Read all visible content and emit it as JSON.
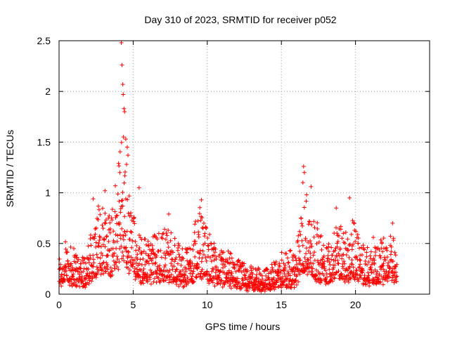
{
  "chart_data": {
    "type": "scatter",
    "title": "Day 310 of 2023, SRMTID for receiver p052",
    "xlabel": "GPS time / hours",
    "ylabel": "SRMTID / TECUs",
    "xlim": [
      0,
      25
    ],
    "ylim": [
      0,
      2.5
    ],
    "xticks": [
      0,
      5,
      10,
      15,
      20
    ],
    "xtick_labels": [
      "0",
      "5",
      "10",
      "15",
      "20"
    ],
    "yticks": [
      0,
      0.5,
      1,
      1.5,
      2,
      2.5
    ],
    "ytick_labels": [
      "0",
      "0.5",
      "1",
      "1.5",
      "2",
      "2.5"
    ],
    "grid": true,
    "marker": "+",
    "color": "#ff0000",
    "series": [
      {
        "name": "SRMTID",
        "envelope_x": [
          0,
          0.5,
          1,
          1.5,
          2,
          2.2,
          2.5,
          3,
          3.5,
          4,
          4.2,
          4.4,
          4.6,
          5,
          5.5,
          6,
          6.5,
          7,
          7.5,
          8,
          8.5,
          9,
          9.5,
          10,
          10.5,
          11,
          11.5,
          12,
          12.5,
          13,
          13.5,
          14,
          14.5,
          15,
          15.5,
          16,
          16.5,
          17,
          17.5,
          18,
          18.5,
          19,
          19.5,
          20,
          20.5,
          21,
          21.5,
          22,
          22.5,
          22.8
        ],
        "envelope_y": [
          0.25,
          0.35,
          0.3,
          0.28,
          0.3,
          0.45,
          0.5,
          0.65,
          0.6,
          0.8,
          1.1,
          0.9,
          0.7,
          0.55,
          0.4,
          0.35,
          0.4,
          0.45,
          0.4,
          0.32,
          0.3,
          0.4,
          0.55,
          0.45,
          0.3,
          0.28,
          0.26,
          0.22,
          0.2,
          0.18,
          0.16,
          0.17,
          0.2,
          0.28,
          0.25,
          0.3,
          0.65,
          0.55,
          0.42,
          0.35,
          0.45,
          0.45,
          0.4,
          0.5,
          0.35,
          0.3,
          0.3,
          0.4,
          0.42,
          0.35
        ],
        "peaks": [
          {
            "x": 4.2,
            "y": 2.48
          },
          {
            "x": 4.25,
            "y": 2.26
          },
          {
            "x": 4.3,
            "y": 2.07
          },
          {
            "x": 4.33,
            "y": 1.97
          },
          {
            "x": 4.38,
            "y": 1.83
          },
          {
            "x": 4.42,
            "y": 1.8
          },
          {
            "x": 4.35,
            "y": 1.55
          },
          {
            "x": 4.5,
            "y": 1.53
          },
          {
            "x": 4.6,
            "y": 1.45
          },
          {
            "x": 4.65,
            "y": 1.37
          },
          {
            "x": 4.55,
            "y": 1.28
          },
          {
            "x": 4.1,
            "y": 1.2
          },
          {
            "x": 5.4,
            "y": 1.05
          },
          {
            "x": 3.1,
            "y": 1.02
          },
          {
            "x": 2.3,
            "y": 0.94
          },
          {
            "x": 9.6,
            "y": 0.93
          },
          {
            "x": 7.4,
            "y": 0.79
          },
          {
            "x": 16.5,
            "y": 1.26
          },
          {
            "x": 16.55,
            "y": 1.2
          },
          {
            "x": 16.45,
            "y": 1.1
          },
          {
            "x": 17.0,
            "y": 1.06
          },
          {
            "x": 16.7,
            "y": 0.98
          },
          {
            "x": 19.6,
            "y": 0.95
          },
          {
            "x": 18.7,
            "y": 0.85
          },
          {
            "x": 22.5,
            "y": 0.7
          },
          {
            "x": 21.2,
            "y": 0.56
          }
        ]
      }
    ]
  }
}
